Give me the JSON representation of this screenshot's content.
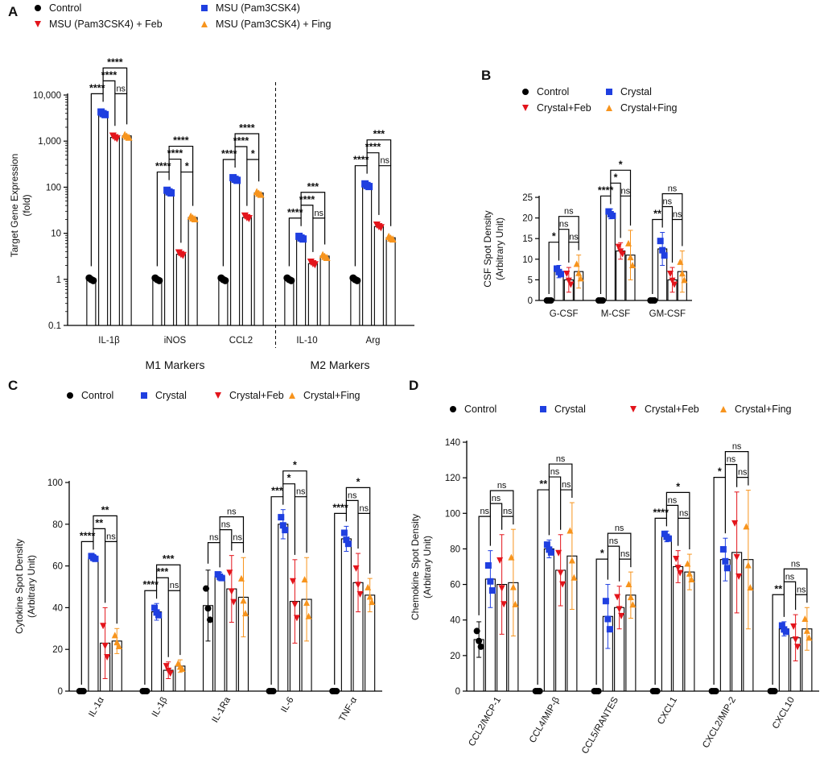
{
  "colors": {
    "control": "#000000",
    "crystal": "#1f3fe0",
    "feb": "#e3141b",
    "fing": "#f7941d"
  },
  "chart_data": [
    {
      "id": "A",
      "panel_label": "A",
      "type": "bar",
      "scale": "log",
      "ylabel": "Target Gene Expression",
      "ylabel2": "(fold)",
      "ylim": [
        0.1,
        10000
      ],
      "yticks": [
        0.1,
        1,
        10,
        100,
        1000,
        10000
      ],
      "ytick_labels": [
        "0.1",
        "1",
        "10",
        "100",
        "1,000",
        "10,000"
      ],
      "categories": [
        "IL-1β",
        "iNOS",
        "CCL2",
        "IL-10",
        "Arg"
      ],
      "groups": [
        {
          "label": "M1 Markers",
          "from": 0,
          "to": 2
        },
        {
          "label": "M2 Markers",
          "from": 3,
          "to": 4
        }
      ],
      "divider_after": 2,
      "series": [
        {
          "name": "Control",
          "key": "control",
          "shape": "circle",
          "values": [
            1,
            1,
            1,
            1,
            1
          ]
        },
        {
          "name": "MSU (Pam3CSK4)",
          "key": "crystal",
          "shape": "square",
          "values": [
            4000,
            80,
            150,
            8,
            110
          ]
        },
        {
          "name": "MSU (Pam3CSK4) + Feb",
          "key": "feb",
          "shape": "tri-down",
          "values": [
            1200,
            3.5,
            22,
            2.2,
            14
          ]
        },
        {
          "name": "MSU (Pam3CSK4) + Fing",
          "key": "fing",
          "shape": "tri-up",
          "values": [
            1300,
            22,
            75,
            3.2,
            8
          ]
        }
      ],
      "legend": [
        "Control",
        "MSU (Pam3CSK4)",
        "MSU (Pam3CSK4) + Feb",
        "MSU (Pam3CSK4) + Fing"
      ],
      "significance": [
        [
          "****",
          "****",
          "****",
          "ns"
        ],
        [
          "****",
          "****",
          "****",
          "*"
        ],
        [
          "****",
          "****",
          "****",
          "*"
        ],
        [
          "****",
          "****",
          "***",
          "ns"
        ],
        [
          "****",
          "****",
          "***",
          "ns"
        ]
      ]
    },
    {
      "id": "B",
      "panel_label": "B",
      "type": "bar",
      "scale": "linear",
      "ylabel": "CSF Spot Density",
      "ylabel2": "(Arbitrary Unit)",
      "ylim": [
        0,
        25
      ],
      "yticks": [
        0,
        5,
        10,
        15,
        20,
        25
      ],
      "categories": [
        "G-CSF",
        "M-CSF",
        "GM-CSF"
      ],
      "series": [
        {
          "name": "Control",
          "key": "control",
          "shape": "circle",
          "values": [
            0,
            0,
            0
          ]
        },
        {
          "name": "Crystal",
          "key": "crystal",
          "shape": "square",
          "values": [
            7,
            21,
            12.5
          ]
        },
        {
          "name": "Crystal+Feb",
          "key": "feb",
          "shape": "tri-down",
          "values": [
            5,
            12,
            5
          ]
        },
        {
          "name": "Crystal+Fing",
          "key": "fing",
          "shape": "tri-up",
          "values": [
            7,
            11,
            7
          ]
        }
      ],
      "errors": [
        [
          0,
          0,
          0
        ],
        [
          1.5,
          1.2,
          4
        ],
        [
          3,
          2,
          3
        ],
        [
          4,
          6,
          5
        ]
      ],
      "legend": [
        "Control",
        "Crystal",
        "Crystal+Feb",
        "Crystal+Fing"
      ],
      "significance": [
        [
          "*",
          "ns",
          "ns",
          "ns"
        ],
        [
          "****",
          "*",
          "*",
          "ns"
        ],
        [
          "**",
          "ns",
          "ns",
          "ns"
        ]
      ]
    },
    {
      "id": "C",
      "panel_label": "C",
      "type": "bar",
      "scale": "linear",
      "ylabel": "Cytokine Spot Density",
      "ylabel2": "(Arbitrary Unit)",
      "ylim": [
        0,
        100
      ],
      "yticks": [
        0,
        20,
        40,
        60,
        80,
        100
      ],
      "categories": [
        "IL-1α",
        "IL-1β",
        "IL-1Ra",
        "IL-6",
        "TNF-α"
      ],
      "series": [
        {
          "name": "Control",
          "key": "control",
          "shape": "circle",
          "values": [
            0,
            0,
            41,
            0,
            0
          ]
        },
        {
          "name": "Crystal",
          "key": "crystal",
          "shape": "square",
          "values": [
            64,
            38,
            55,
            80,
            73
          ]
        },
        {
          "name": "Crystal+Feb",
          "key": "feb",
          "shape": "tri-down",
          "values": [
            23,
            10,
            49,
            43,
            52
          ]
        },
        {
          "name": "Crystal+Fing",
          "key": "fing",
          "shape": "tri-up",
          "values": [
            24,
            12,
            45,
            44,
            46
          ]
        }
      ],
      "errors": [
        [
          0,
          0,
          17,
          0,
          0
        ],
        [
          1.5,
          4,
          2,
          7,
          6
        ],
        [
          17,
          4,
          16,
          20,
          14
        ],
        [
          6,
          3,
          19,
          20,
          8
        ]
      ],
      "legend": [
        "Control",
        "Crystal",
        "Crystal+Feb",
        "Crystal+Fing"
      ],
      "significance": [
        [
          "****",
          "**",
          "**",
          "ns"
        ],
        [
          "****",
          "***",
          "***",
          "ns"
        ],
        [
          "ns",
          "ns",
          "ns",
          "ns"
        ],
        [
          "***",
          "*",
          "*",
          "ns"
        ],
        [
          "****",
          "ns",
          "*",
          "ns"
        ]
      ]
    },
    {
      "id": "D",
      "panel_label": "D",
      "type": "bar",
      "scale": "linear",
      "ylabel": "Chemokine Spot Density",
      "ylabel2": "(Arbitrary Unit)",
      "ylim": [
        0,
        140
      ],
      "yticks": [
        0,
        20,
        40,
        60,
        80,
        100,
        120,
        140
      ],
      "categories": [
        "CCL2/MCP-1",
        "CCL4/MIP-β",
        "CCL5/RANTES",
        "CXCL1",
        "CXCL2/MIP-2",
        "CXCL10"
      ],
      "series": [
        {
          "name": "Control",
          "key": "control",
          "shape": "circle",
          "values": [
            29,
            0,
            0,
            0,
            0,
            0
          ]
        },
        {
          "name": "Crystal",
          "key": "crystal",
          "shape": "square",
          "values": [
            63,
            80,
            42,
            87,
            74,
            35
          ]
        },
        {
          "name": "Crystal+Feb",
          "key": "feb",
          "shape": "tri-down",
          "values": [
            60,
            68,
            47,
            70,
            78,
            30
          ]
        },
        {
          "name": "Crystal+Fing",
          "key": "fing",
          "shape": "tri-up",
          "values": [
            61,
            76,
            54,
            67,
            74,
            35
          ]
        }
      ],
      "errors": [
        [
          10,
          0,
          0,
          0,
          0,
          0
        ],
        [
          16,
          5,
          18,
          3,
          12,
          4
        ],
        [
          28,
          20,
          12,
          9,
          34,
          13
        ],
        [
          30,
          30,
          13,
          10,
          39,
          12
        ]
      ],
      "legend": [
        "Control",
        "Crystal",
        "Crystal+Feb",
        "Crystal+Fing"
      ],
      "significance": [
        [
          "ns",
          "ns",
          "ns",
          "ns"
        ],
        [
          "**",
          "ns",
          "ns",
          "ns"
        ],
        [
          "*",
          "ns",
          "ns",
          "ns"
        ],
        [
          "****",
          "ns",
          "*",
          "ns"
        ],
        [
          "*",
          "ns",
          "ns",
          "ns"
        ],
        [
          "**",
          "ns",
          "ns",
          "ns"
        ]
      ]
    }
  ]
}
